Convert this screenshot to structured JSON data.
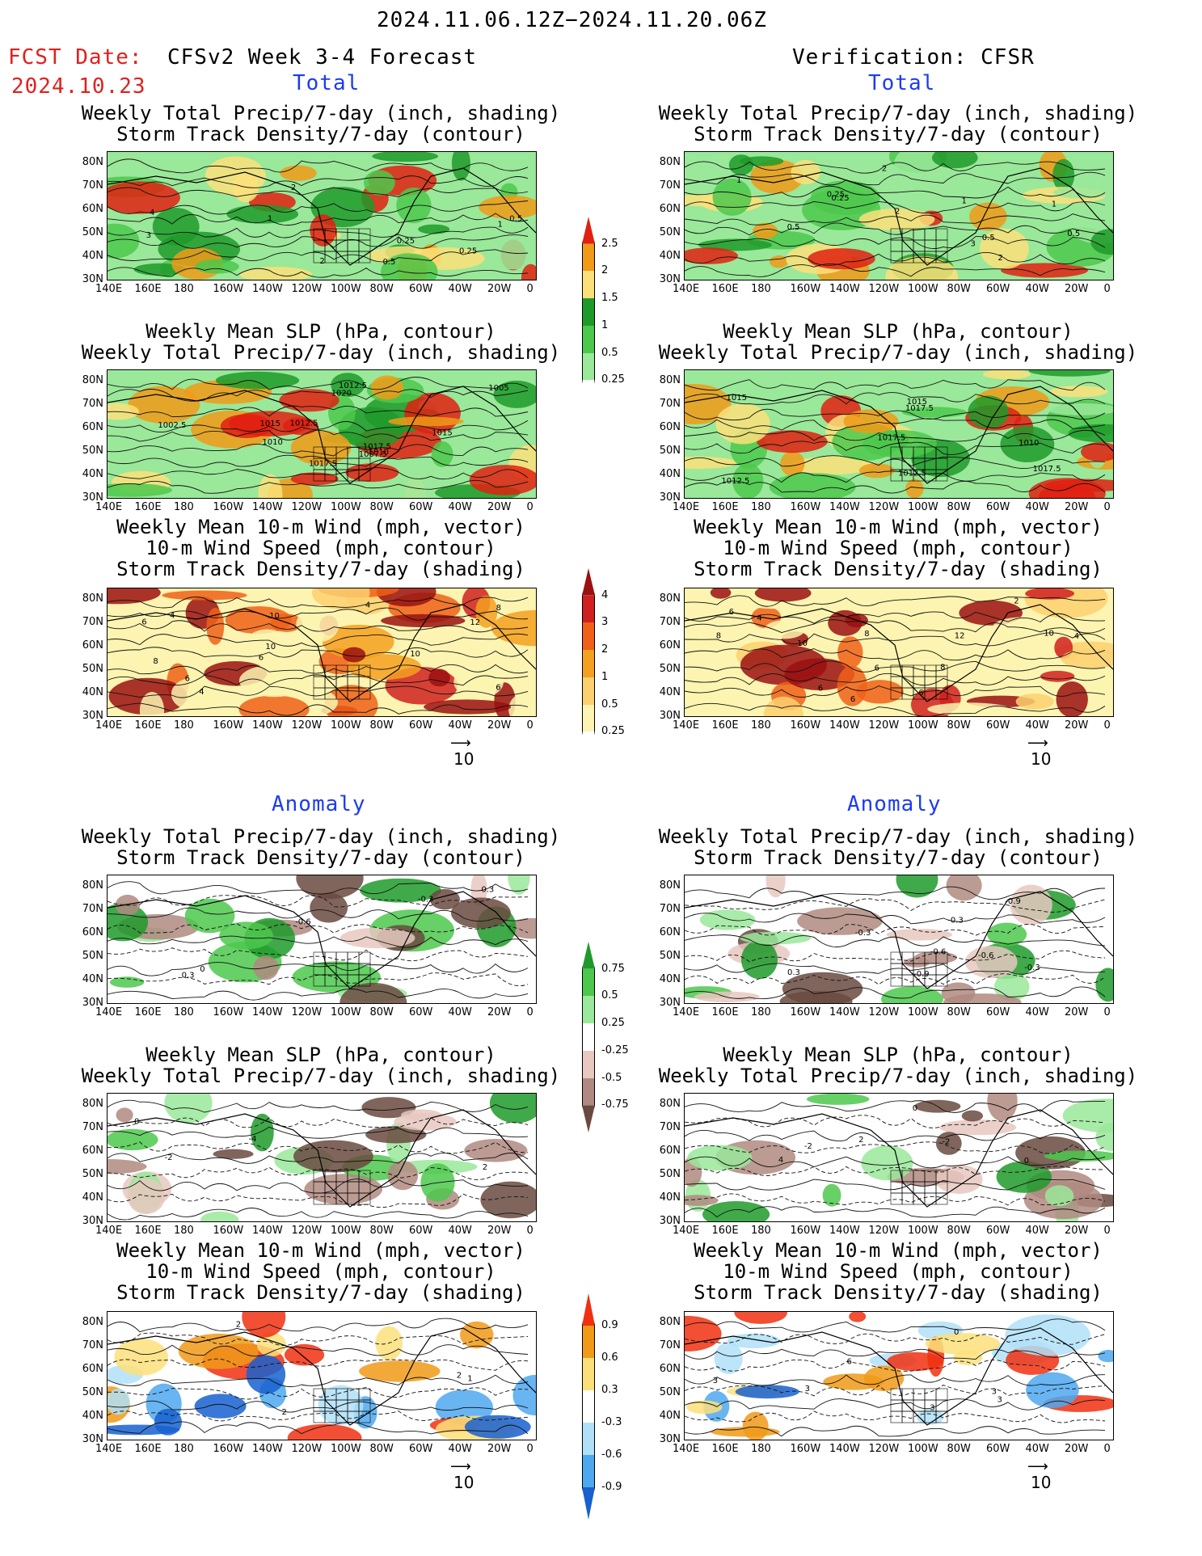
{
  "header": {
    "date_range": "2024.11.06.12Z−2024.11.20.06Z",
    "fcst_label": "FCST Date:",
    "fcst_date": "2024.10.23",
    "model_title": "CFSv2 Week 3-4 Forecast",
    "verification": "Verification: CFSR"
  },
  "sections": {
    "total": "Total",
    "anomaly": "Anomaly"
  },
  "titles": {
    "precip_storm": [
      "Weekly Total Precip/7-day (inch, shading)",
      "Storm Track Density/7-day (contour)"
    ],
    "slp_precip": [
      "Weekly Mean SLP (hPa, contour)",
      "Weekly Total Precip/7-day (inch, shading)"
    ],
    "wind_storm": [
      "Weekly Mean 10-m Wind (mph, vector)",
      "10-m Wind Speed (mph, contour)",
      "Storm Track Density/7-day (shading)"
    ]
  },
  "axes": {
    "lat": [
      "80N",
      "70N",
      "60N",
      "50N",
      "40N",
      "30N"
    ],
    "lon": [
      "140E",
      "160E",
      "180",
      "160W",
      "140W",
      "120W",
      "100W",
      "80W",
      "60W",
      "40W",
      "20W",
      "0"
    ]
  },
  "ref_vector": "10",
  "colorbars": {
    "precip_total": {
      "labels": [
        "2.5",
        "2",
        "1.5",
        "1",
        "0.5",
        "0.25"
      ],
      "colors": [
        "#e02010",
        "#f09a18",
        "#fbe07a",
        "#1e9a2a",
        "#4cc84c",
        "#9ae89a",
        "#ffffff"
      ]
    },
    "storm_total": {
      "labels": [
        "4",
        "3",
        "2",
        "1",
        "0.5",
        "0.25"
      ],
      "colors": [
        "#9a1010",
        "#d02020",
        "#f06018",
        "#f4a020",
        "#fcd070",
        "#fcf4b0",
        "#ffffff"
      ]
    },
    "precip_anom": {
      "labels": [
        "0.75",
        "0.5",
        "0.25",
        "-0.25",
        "-0.5",
        "-0.75"
      ],
      "colors": [
        "#1e9a2a",
        "#4cc84c",
        "#9ae89a",
        "#ffffff",
        "#e8c8c0",
        "#b08a80",
        "#6a4a40"
      ]
    },
    "storm_anom": {
      "labels": [
        "0.9",
        "0.6",
        "0.3",
        "-0.3",
        "-0.6",
        "-0.9"
      ],
      "colors": [
        "#f03010",
        "#f09a18",
        "#fbe07a",
        "#ffffff",
        "#b0e0f8",
        "#4ea8f0",
        "#1860d0"
      ]
    }
  },
  "contour_labels": {
    "p1L": [
      "0.25",
      "0.5",
      "1",
      "4",
      "3",
      "2",
      "0.25",
      "0.5",
      "1",
      "2"
    ],
    "p1R": [
      "0.5",
      "0.25",
      "1",
      "0.5",
      "2",
      "1",
      "0.25",
      "2",
      "0.5",
      "3",
      "2",
      "1"
    ],
    "p2L": [
      "1020",
      "1017.5",
      "1012.5",
      "1010",
      "1002.5",
      "1005",
      "1007.5",
      "1010",
      "1012.5",
      "1015",
      "1017.5",
      "1015"
    ],
    "p2R": [
      "1012.5",
      "1010",
      "1017.5",
      "1012.5",
      "1015",
      "1017.5",
      "1015",
      "1017.5"
    ],
    "p3L": [
      "10",
      "8",
      "10",
      "4",
      "4",
      "10",
      "6",
      "6",
      "12",
      "6",
      "8",
      "4",
      "6"
    ],
    "p3R": [
      "10",
      "6",
      "8",
      "6",
      "6",
      "4",
      "2",
      "4",
      "12",
      "8",
      "6",
      "6",
      "10",
      "8"
    ],
    "p4L": [
      "0",
      "-0.6",
      "0.3",
      "-0.3",
      "0.3"
    ],
    "p4R": [
      "-0.6",
      "-0.9",
      "0.3",
      "-0.3",
      "-0.6",
      "-0.3",
      "-0.9",
      "-0.3"
    ],
    "p5L": [
      "0",
      "2",
      "-2",
      "-4"
    ],
    "p5R": [
      "0",
      "-2",
      "2",
      "4",
      "-2",
      "0"
    ],
    "p6L": [
      "2",
      "2",
      "2",
      "1"
    ],
    "p6R": [
      "6",
      "3",
      "3",
      "3",
      "0",
      "3",
      "3"
    ]
  }
}
